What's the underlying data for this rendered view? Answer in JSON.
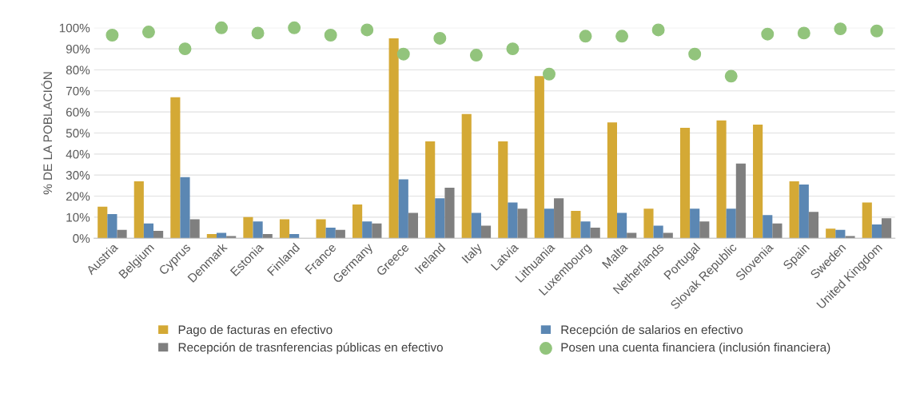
{
  "chart_data": {
    "type": "bar",
    "ylabel": "% DE LA POBLACIÓN",
    "categories": [
      "Austria",
      "Belgium",
      "Cyprus",
      "Denmark",
      "Estonia",
      "Finland",
      "France",
      "Germany",
      "Greece",
      "Ireland",
      "Italy",
      "Latvia",
      "Lithuania",
      "Luxembourg",
      "Malta",
      "Netherlands",
      "Portugal",
      "Slovak Republic",
      "Slovenia",
      "Spain",
      "Sweden",
      "United Kingdom"
    ],
    "series": [
      {
        "name": "Pago de facturas en efectivo",
        "color": "#d4a935",
        "values": [
          15,
          27,
          67,
          2,
          10,
          9,
          9,
          16,
          95,
          46,
          59,
          46,
          77,
          13,
          55,
          14,
          52.5,
          56,
          54,
          27,
          4.5,
          17
        ]
      },
      {
        "name": "Recepción de salarios en efectivo",
        "color": "#5b87b3",
        "values": [
          11.5,
          7,
          29,
          2.5,
          8,
          2,
          5,
          8,
          28,
          19,
          12,
          17,
          14,
          8,
          12,
          6,
          14,
          14,
          11,
          25.5,
          4,
          6.5
        ]
      },
      {
        "name": "Recepción de trasnferencias públicas en efectivo",
        "color": "#7f7f7f",
        "values": [
          4,
          3.5,
          9,
          1,
          2,
          0,
          4,
          7,
          12,
          24,
          6,
          14,
          19,
          5,
          2.5,
          2.5,
          8,
          35.5,
          7,
          12.5,
          1,
          9.5
        ]
      },
      {
        "name": "Posen una cuenta financiera (inclusión financiera)",
        "color": "#92c47c",
        "type": "scatter",
        "marker": "circle",
        "values": [
          96.5,
          98,
          90,
          100,
          97.5,
          100,
          96.5,
          99,
          87.5,
          95,
          87,
          90,
          78,
          96,
          96,
          99,
          87.5,
          77,
          97,
          97.5,
          99.5,
          98.5
        ]
      }
    ],
    "ylim": [
      0,
      100
    ],
    "yticks": [
      {
        "value": 0,
        "label": "0%"
      },
      {
        "value": 10,
        "label": "10%"
      },
      {
        "value": 20,
        "label": "20%"
      },
      {
        "value": 30,
        "label": "30%"
      },
      {
        "value": 40,
        "label": "40%"
      },
      {
        "value": 50,
        "label": "50%"
      },
      {
        "value": 60,
        "label": "60%"
      },
      {
        "value": 70,
        "label": "70%"
      },
      {
        "value": 80,
        "label": "80%"
      },
      {
        "value": 90,
        "label": "90%"
      },
      {
        "value": 100,
        "label": "100%"
      }
    ],
    "grid": "y",
    "legend": "bottom"
  }
}
